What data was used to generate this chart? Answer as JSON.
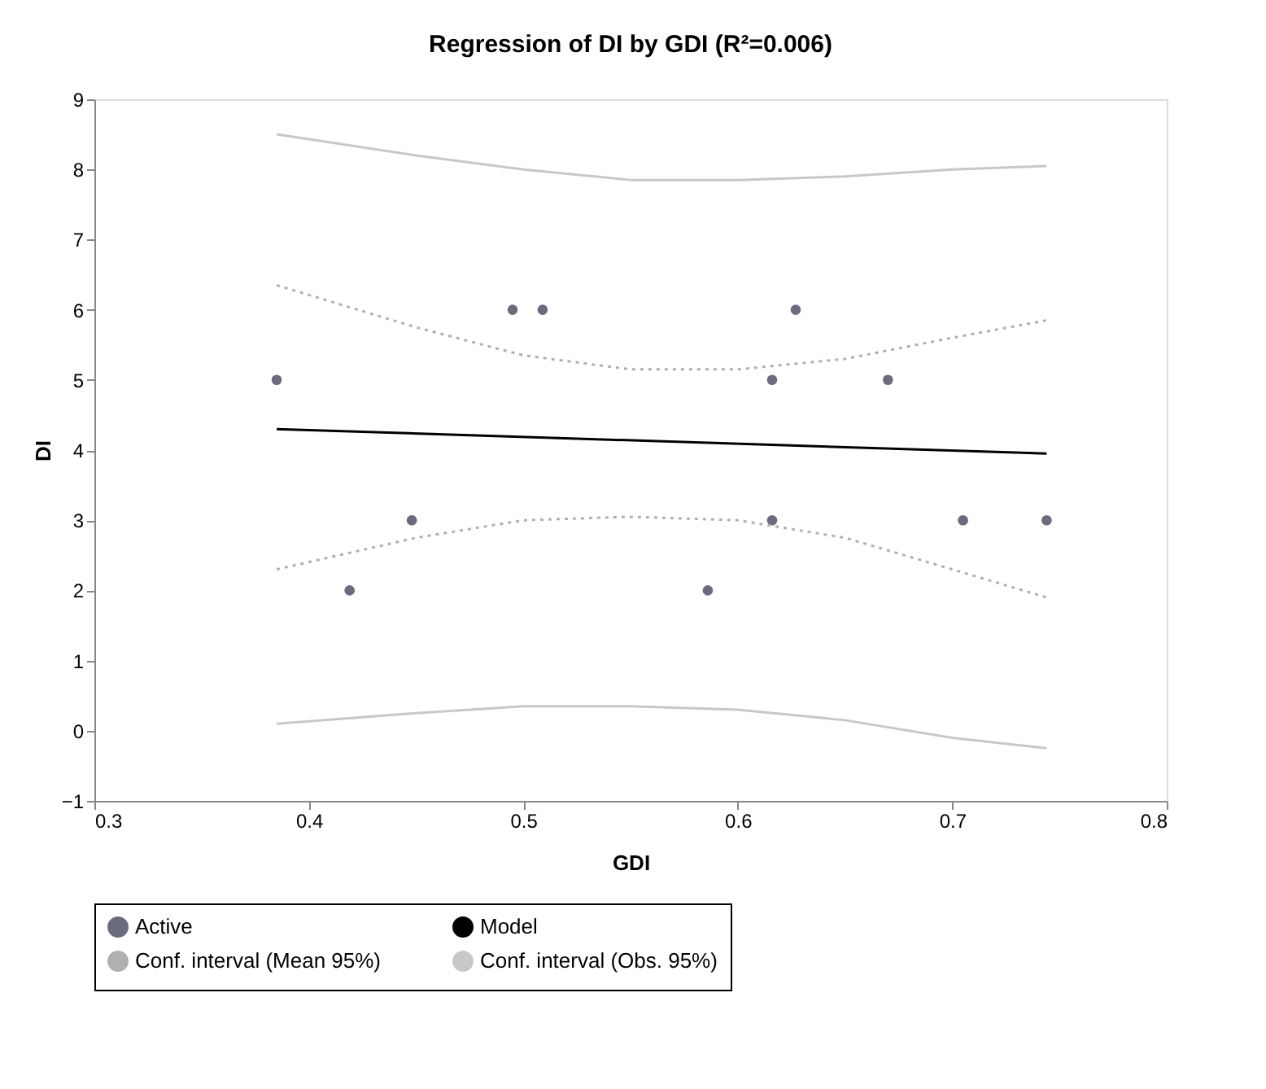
{
  "chart_data": {
    "type": "scatter",
    "title": "Regression of DI by GDI (R²=0.006)",
    "xlabel": "GDI",
    "ylabel": "DI",
    "xlim": [
      0.3,
      0.8
    ],
    "xticks": [
      0.3,
      0.4,
      0.5,
      0.6,
      0.7,
      0.8
    ],
    "ylim": [
      -1,
      9
    ],
    "yticks": [
      -1,
      0,
      1,
      2,
      3,
      4,
      5,
      6,
      7,
      8,
      9
    ],
    "grid": false,
    "legend": "bottom",
    "marker": "circle",
    "series": [
      {
        "name": "Active",
        "color": "#6b6b80",
        "x": [
          0.385,
          0.419,
          0.448,
          0.495,
          0.509,
          0.586,
          0.616,
          0.616,
          0.627,
          0.67,
          0.705,
          0.744
        ],
        "values": [
          5,
          2,
          3,
          6,
          6,
          2,
          5,
          3,
          6,
          5,
          3,
          3
        ]
      },
      {
        "name": "Model",
        "type": "line",
        "marker": "none",
        "line_style": "solid",
        "color": "#000000",
        "x": [
          0.385,
          0.744
        ],
        "values": [
          4.3,
          3.95
        ]
      },
      {
        "name": "Conf. interval (Mean 95%)",
        "type": "line",
        "marker": "none",
        "line_style": "dotted",
        "color": "#b0b0b0",
        "x": [
          0.385,
          0.45,
          0.5,
          0.55,
          0.6,
          0.65,
          0.7,
          0.744
        ],
        "values": [
          6.35,
          5.75,
          5.35,
          5.15,
          5.15,
          5.3,
          5.6,
          5.85
        ]
      },
      {
        "type": "line",
        "marker": "none",
        "line_style": "dotted",
        "color": "#b0b0b0",
        "x": [
          0.385,
          0.45,
          0.5,
          0.55,
          0.6,
          0.65,
          0.7,
          0.744
        ],
        "values": [
          2.3,
          2.75,
          3.0,
          3.05,
          3.0,
          2.75,
          2.3,
          1.9
        ]
      },
      {
        "name": "Conf. interval (Obs. 95%)",
        "type": "line",
        "marker": "none",
        "line_style": "solid",
        "color": "#c8c8c8",
        "x": [
          0.385,
          0.45,
          0.5,
          0.55,
          0.6,
          0.65,
          0.7,
          0.744
        ],
        "values": [
          8.5,
          8.2,
          8.0,
          7.85,
          7.85,
          7.9,
          8.0,
          8.05
        ]
      },
      {
        "type": "line",
        "marker": "none",
        "line_style": "solid",
        "color": "#c8c8c8",
        "x": [
          0.385,
          0.45,
          0.5,
          0.55,
          0.6,
          0.65,
          0.7,
          0.744
        ],
        "values": [
          0.1,
          0.25,
          0.35,
          0.35,
          0.3,
          0.15,
          -0.1,
          -0.25
        ]
      }
    ]
  }
}
